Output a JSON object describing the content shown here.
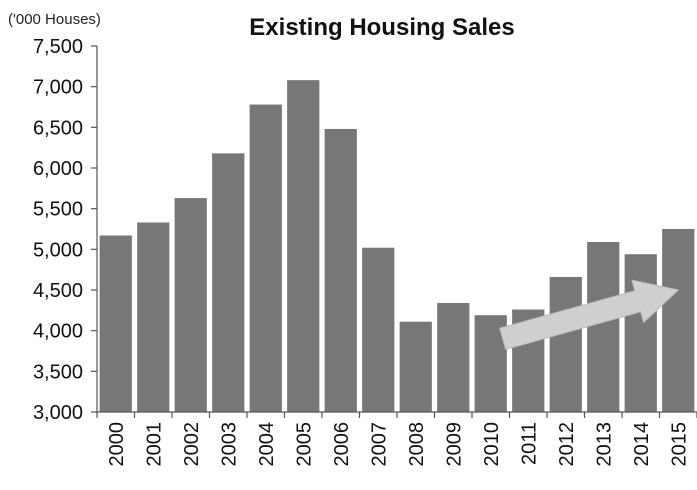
{
  "chart_data": {
    "type": "bar",
    "title": "Existing Housing Sales",
    "units_label": "('000 Houses)",
    "xlabel": "",
    "ylabel": "",
    "categories": [
      "2000",
      "2001",
      "2002",
      "2003",
      "2004",
      "2005",
      "2006",
      "2007",
      "2008",
      "2009",
      "2010",
      "2011",
      "2012",
      "2013",
      "2014",
      "2015"
    ],
    "values": [
      5170,
      5330,
      5630,
      6180,
      6780,
      7080,
      6480,
      5020,
      4110,
      4340,
      4190,
      4260,
      4660,
      5090,
      4940,
      5250
    ],
    "ylim": [
      3000,
      7500
    ],
    "yticks": [
      3000,
      3500,
      4000,
      4500,
      5000,
      5500,
      6000,
      6500,
      7000,
      7500
    ],
    "ytick_labels": [
      "3,000",
      "3,500",
      "4,000",
      "4,500",
      "5,000",
      "5,500",
      "6,000",
      "6,500",
      "7,000",
      "7,500"
    ],
    "grid": false,
    "legend": "none",
    "bar_color": "#777777",
    "annotation": {
      "type": "trend-arrow",
      "from_category": "2010",
      "to_category": "2015",
      "from_value": 3900,
      "to_value": 4500,
      "color": "#cfcfcf"
    }
  }
}
